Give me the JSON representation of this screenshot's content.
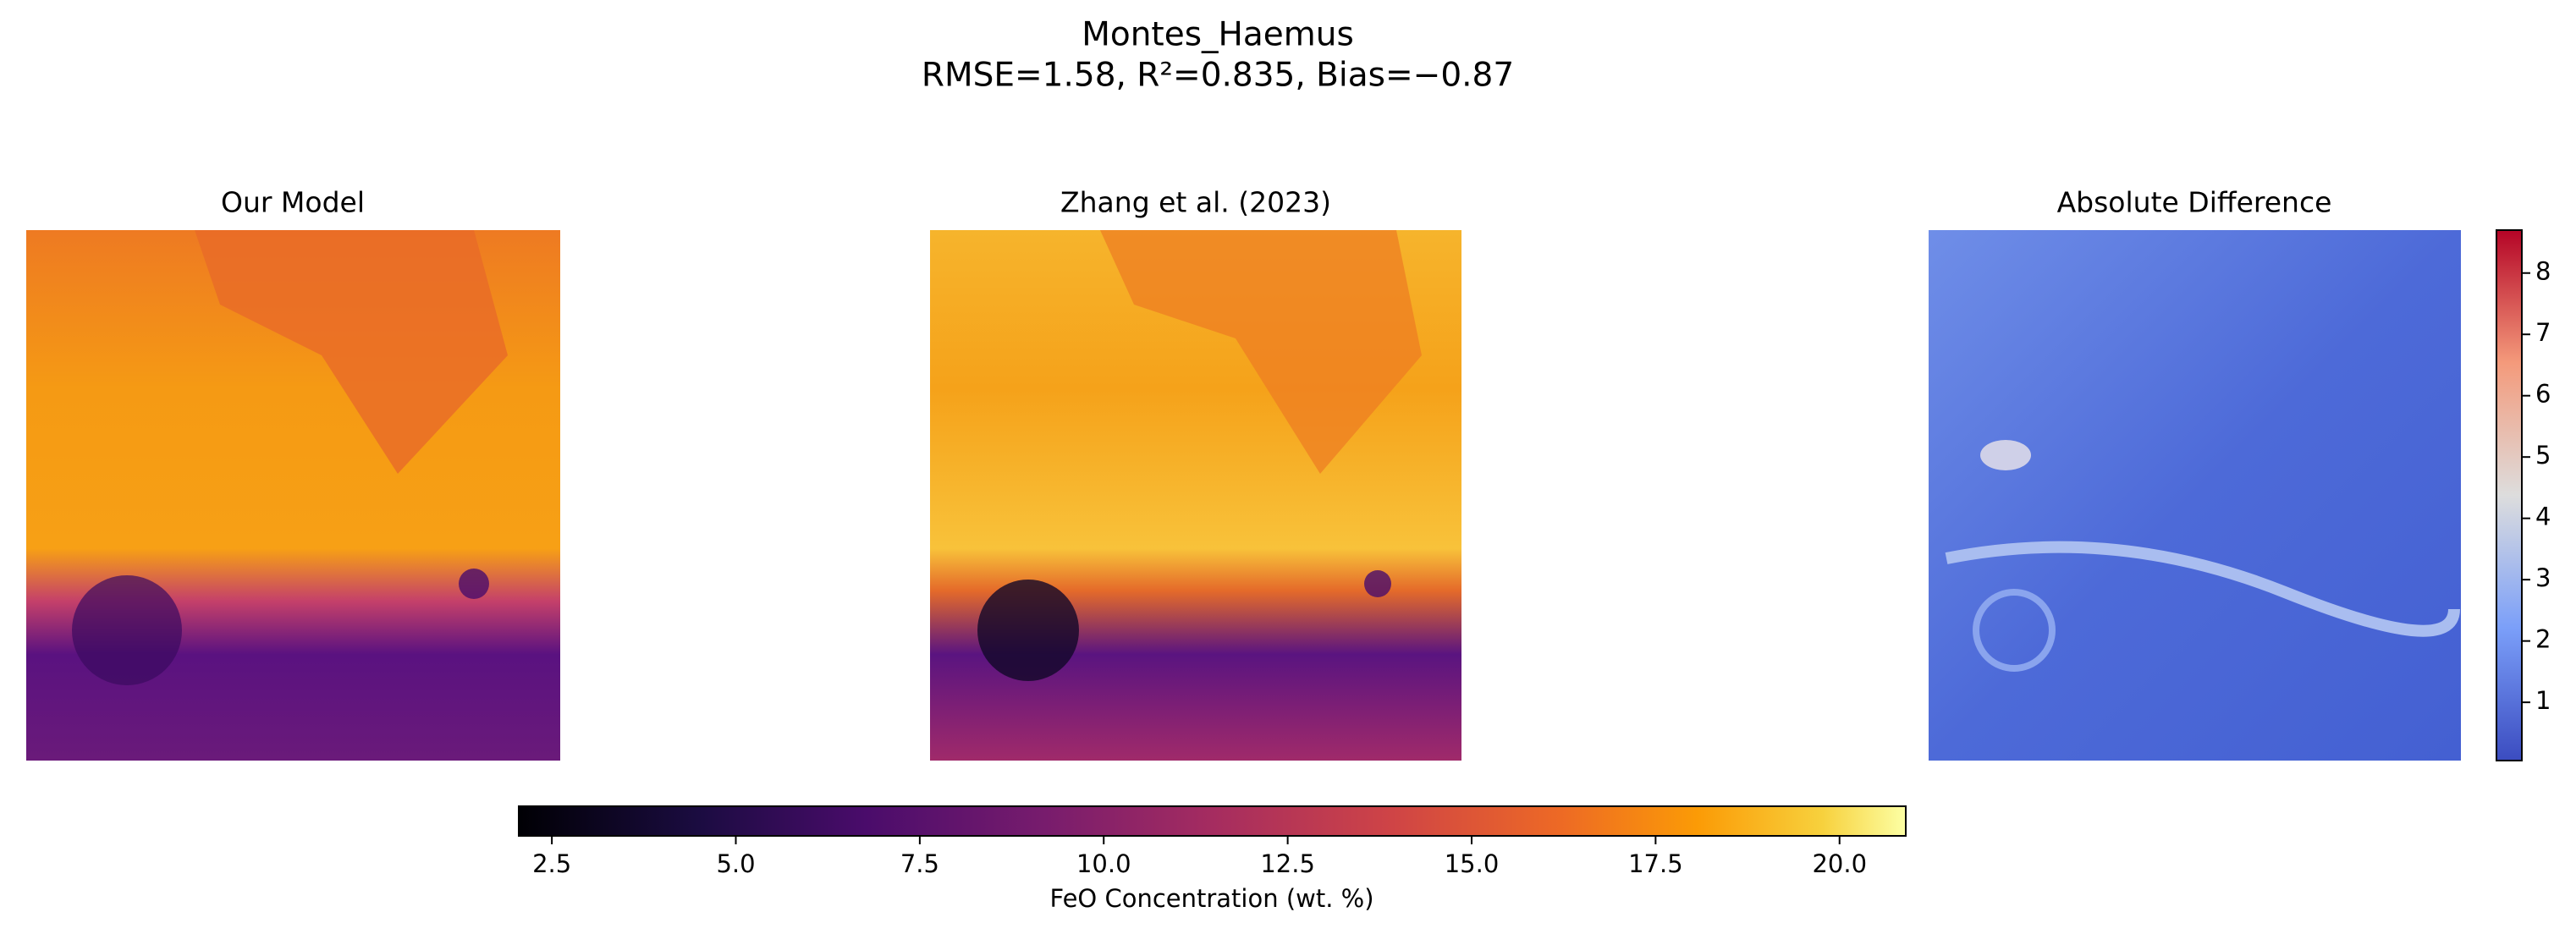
{
  "figure": {
    "title": "Montes_Haemus",
    "subtitle": "RMSE=1.58, R²=0.835, Bias=−0.87",
    "panels": [
      {
        "title": "Our Model"
      },
      {
        "title": "Zhang et al. (2023)"
      },
      {
        "title": "Absolute Difference"
      }
    ],
    "colorbars": [
      {
        "label": "FeO Concentration (wt. %)",
        "orientation": "horizontal",
        "colormap": "inferno",
        "lim": [
          2.05,
          20.9
        ],
        "ticks": [
          2.5,
          {
            "value": 5,
            "label": "5.0"
          },
          7.5,
          {
            "value": 10,
            "label": "10.0"
          },
          12.5,
          {
            "value": 15,
            "label": "15.0"
          },
          17.5,
          {
            "value": 20,
            "label": "20.0"
          }
        ]
      },
      {
        "orientation": "vertical",
        "colormap": "coolwarm",
        "lim": [
          0.05,
          8.7
        ],
        "ticks": [
          1,
          2,
          3,
          4,
          5,
          6,
          7,
          8
        ]
      }
    ]
  }
}
